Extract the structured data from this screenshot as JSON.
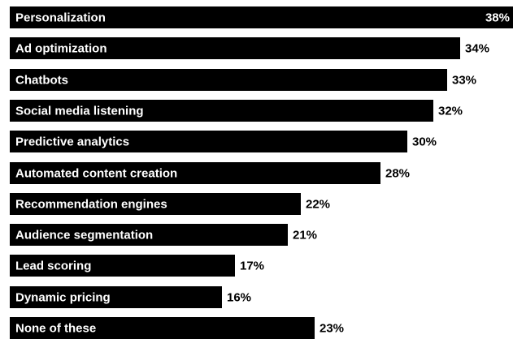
{
  "chart_data": {
    "type": "bar",
    "orientation": "horizontal",
    "title": "",
    "xlabel": "",
    "ylabel": "",
    "unit": "%",
    "xlim": [
      0,
      38
    ],
    "grid": false,
    "legend": "none",
    "bar_color": "#000000",
    "label_color": "#ffffff",
    "categories": [
      "Personalization",
      "Ad optimization",
      "Chatbots",
      "Social media listening",
      "Predictive analytics",
      "Automated content creation",
      "Recommendation engines",
      "Audience segmentation",
      "Lead scoring",
      "Dynamic pricing",
      "None of these"
    ],
    "values": [
      38,
      34,
      33,
      32,
      30,
      28,
      22,
      21,
      17,
      16,
      23
    ],
    "value_labels": [
      "38%",
      "34%",
      "33%",
      "32%",
      "30%",
      "28%",
      "22%",
      "21%",
      "17%",
      "16%",
      "23%"
    ]
  }
}
